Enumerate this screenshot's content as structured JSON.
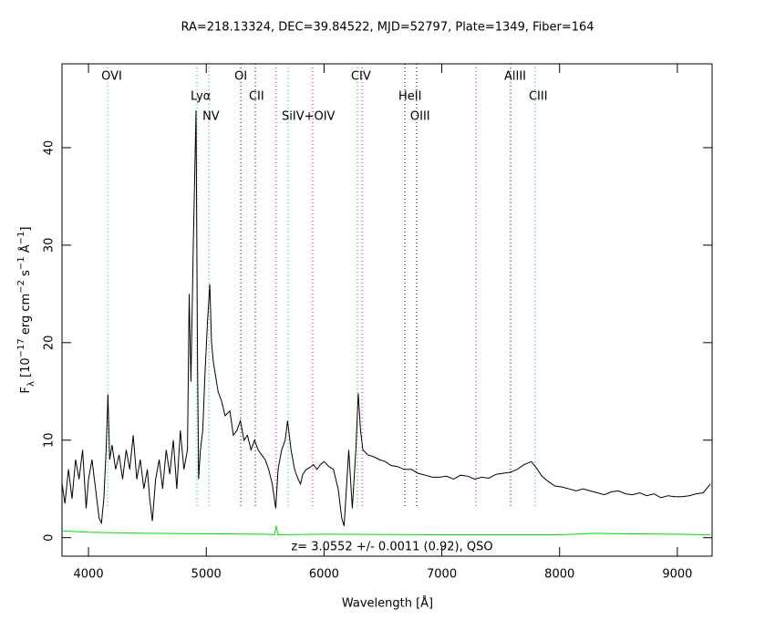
{
  "chart_data": {
    "type": "line",
    "title": "RA=218.13324, DEC=39.84522, MJD=52797, Plate=1349, Fiber=164",
    "x_label": "Wavelength [Å]",
    "y_label": [
      {
        "text": "F"
      },
      {
        "text": "λ",
        "shift": "sub"
      },
      {
        "text": " [10"
      },
      {
        "text": "−17",
        "shift": "super"
      },
      {
        "text": " erg cm"
      },
      {
        "text": "−2",
        "shift": "super"
      },
      {
        "text": " s"
      },
      {
        "text": "−1",
        "shift": "super"
      },
      {
        "text": " Å"
      },
      {
        "text": "−1",
        "shift": "super"
      },
      {
        "text": "]"
      }
    ],
    "annotation": "z= 3.0552 +/- 0.0011 (0.92), QSO",
    "xlim": [
      3775,
      9295
    ],
    "ylim": [
      -1.9,
      48.6
    ],
    "xticks": [
      4000,
      5000,
      6000,
      7000,
      8000,
      9000
    ],
    "yticks": [
      0,
      10,
      20,
      30,
      40
    ],
    "reference_lines": [
      {
        "x": 4163,
        "color": "#00d000",
        "label": "OVI"
      },
      {
        "x": 4921,
        "color": "#00d000",
        "label": "Lyα"
      },
      {
        "x": 5022,
        "color": "#00d000",
        "label": "NV"
      },
      {
        "x": 5293,
        "color": "#000000",
        "label": "OI"
      },
      {
        "x": 5416,
        "color": "#000000",
        "label": "CII"
      },
      {
        "x": 5594,
        "color": "#e000e0"
      },
      {
        "x": 5695,
        "color": "#00d000",
        "label": "SiIV+OIV"
      },
      {
        "x": 5904,
        "color": "#e000e0"
      },
      {
        "x": 6283,
        "color": "#00d000",
        "label": "CIV"
      },
      {
        "x": 6322,
        "color": "#e000e0"
      },
      {
        "x": 6686,
        "color": "#000000",
        "label": "HeII"
      },
      {
        "x": 6786,
        "color": "#000000",
        "label": "OIII"
      },
      {
        "x": 7289,
        "color": "#e000e0"
      },
      {
        "x": 7584,
        "color": "#000000",
        "label": "AlIII"
      },
      {
        "x": 7793,
        "color": "#00d000",
        "label": "CIII"
      }
    ],
    "series": [
      {
        "color": "#000000",
        "x": [
          3775,
          3800,
          3830,
          3860,
          3890,
          3920,
          3950,
          3980,
          4000,
          4030,
          4060,
          4090,
          4110,
          4130,
          4150,
          4165,
          4180,
          4200,
          4230,
          4260,
          4290,
          4320,
          4350,
          4380,
          4410,
          4440,
          4470,
          4500,
          4520,
          4542,
          4570,
          4600,
          4630,
          4660,
          4690,
          4720,
          4750,
          4780,
          4810,
          4840,
          4855,
          4870,
          4890,
          4913,
          4925,
          4935,
          4950,
          4970,
          4990,
          5010,
          5030,
          5045,
          5060,
          5080,
          5100,
          5130,
          5160,
          5200,
          5230,
          5260,
          5290,
          5320,
          5350,
          5380,
          5410,
          5440,
          5470,
          5500,
          5530,
          5560,
          5590,
          5610,
          5640,
          5670,
          5690,
          5720,
          5750,
          5780,
          5800,
          5820,
          5850,
          5880,
          5910,
          5940,
          5970,
          6000,
          6040,
          6080,
          6120,
          6150,
          6170,
          6190,
          6210,
          6240,
          6270,
          6290,
          6310,
          6330,
          6370,
          6420,
          6470,
          6520,
          6570,
          6620,
          6680,
          6740,
          6800,
          6860,
          6920,
          6980,
          7040,
          7100,
          7160,
          7220,
          7280,
          7340,
          7400,
          7460,
          7520,
          7580,
          7640,
          7700,
          7760,
          7800,
          7850,
          7900,
          7960,
          8020,
          8080,
          8140,
          8200,
          8260,
          8320,
          8380,
          8440,
          8500,
          8560,
          8620,
          8680,
          8740,
          8800,
          8860,
          8920,
          8980,
          9040,
          9100,
          9160,
          9220,
          9280
        ],
        "values": [
          5.6,
          3.5,
          7,
          4,
          8,
          6,
          9,
          3,
          6,
          8,
          5,
          2,
          1.5,
          4,
          9,
          14.7,
          8,
          9.5,
          7,
          8.5,
          6,
          9,
          7,
          10.5,
          6,
          8,
          5,
          7,
          4,
          1.7,
          6,
          8,
          5,
          9,
          6.5,
          10,
          5,
          11,
          7,
          9,
          25,
          16,
          30,
          43.8,
          20,
          6,
          9,
          11,
          17,
          22,
          26,
          20,
          18,
          16.5,
          15,
          14,
          12.5,
          13,
          10.5,
          11,
          12,
          10,
          10.5,
          9,
          10,
          9,
          8.5,
          8,
          7,
          5.5,
          3,
          7,
          9,
          10,
          12,
          9,
          7,
          6,
          5.5,
          6.5,
          7,
          7.2,
          7.5,
          7,
          7.5,
          7.8,
          7.3,
          7,
          5,
          2,
          1.2,
          5,
          9,
          3,
          9,
          14.8,
          11,
          9,
          8.5,
          8.3,
          8,
          7.8,
          7.4,
          7.3,
          7,
          7,
          6.6,
          6.4,
          6.2,
          6.2,
          6.3,
          6,
          6.4,
          6.3,
          6,
          6.2,
          6.1,
          6.5,
          6.6,
          6.7,
          7,
          7.5,
          7.8,
          7.2,
          6.3,
          5.8,
          5.3,
          5.2,
          5,
          4.8,
          5,
          4.8,
          4.6,
          4.4,
          4.7,
          4.8,
          4.5,
          4.4,
          4.6,
          4.3,
          4.5,
          4.1,
          4.3,
          4.2,
          4.2,
          4.3,
          4.5,
          4.6,
          5.5
        ]
      },
      {
        "color": "#00e000",
        "x": [
          3775,
          4000,
          4500,
          5000,
          5500,
          5580,
          5594,
          5610,
          6000,
          7000,
          8000,
          8300,
          8500,
          9000,
          9280
        ],
        "values": [
          0.7,
          0.55,
          0.45,
          0.4,
          0.35,
          0.3,
          1.2,
          0.3,
          0.35,
          0.3,
          0.3,
          0.45,
          0.4,
          0.35,
          0.3
        ]
      }
    ]
  }
}
